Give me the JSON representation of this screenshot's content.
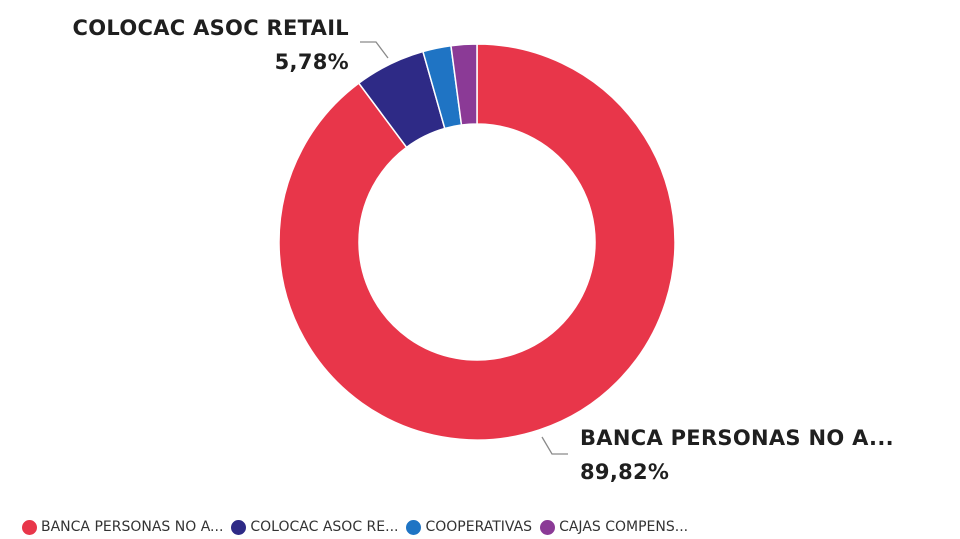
{
  "chart_data": {
    "type": "pie",
    "variant": "donut",
    "categories": [
      "BANCA PERSONAS NO A...",
      "COLOCAC ASOC RETAIL",
      "COOPERATIVAS",
      "CAJAS COMPENS..."
    ],
    "values": [
      89.82,
      5.78,
      2.3,
      2.1
    ],
    "value_labels": [
      "89,82%",
      "5,78%",
      "",
      ""
    ],
    "colors": [
      "#E8364A",
      "#2E2A86",
      "#1F74C4",
      "#8B3A96"
    ],
    "legend": {
      "placement": "bottom-left",
      "entries": [
        "BANCA PERSONAS NO A...",
        "COLOCAC ASOC RE...",
        "COOPERATIVAS",
        "CAJAS COMPENS..."
      ]
    }
  }
}
